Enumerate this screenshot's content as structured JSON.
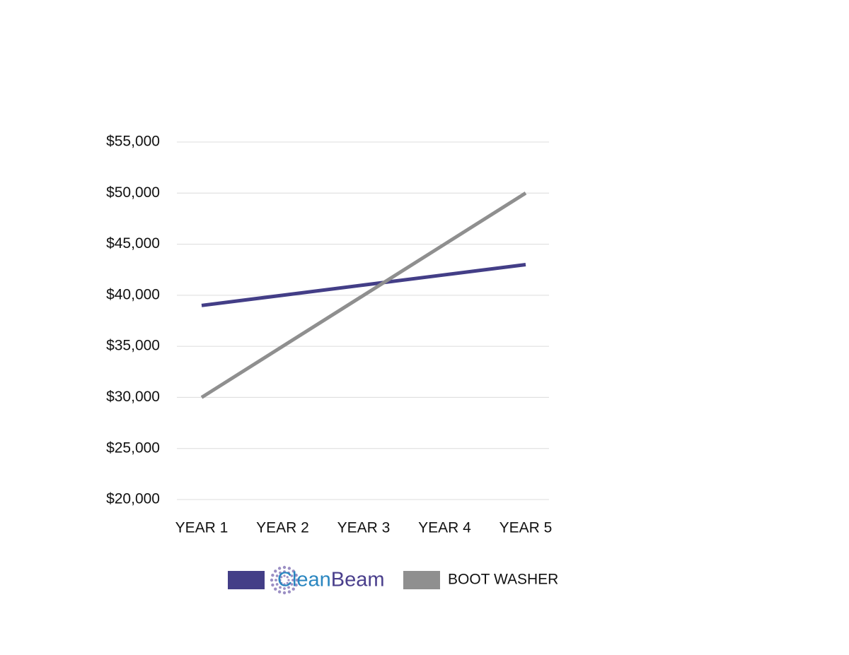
{
  "chart_data": {
    "type": "line",
    "categories": [
      "YEAR 1",
      "YEAR 2",
      "YEAR 3",
      "YEAR 4",
      "YEAR 5"
    ],
    "series": [
      {
        "name": "CleanBeam",
        "color": "#433e87",
        "values": [
          39000,
          40000,
          41000,
          42000,
          43000
        ]
      },
      {
        "name": "BOOT WASHER",
        "color": "#8f8f8f",
        "values": [
          30000,
          35000,
          40000,
          45000,
          50000
        ]
      }
    ],
    "ylim": [
      20000,
      55000
    ],
    "yticks": [
      {
        "value": 20000,
        "label": "$20,000"
      },
      {
        "value": 25000,
        "label": "$25,000"
      },
      {
        "value": 30000,
        "label": "$30,000"
      },
      {
        "value": 35000,
        "label": "$35,000"
      },
      {
        "value": 40000,
        "label": "$40,000"
      },
      {
        "value": 45000,
        "label": "$45,000"
      },
      {
        "value": 50000,
        "label": "$50,000"
      },
      {
        "value": 55000,
        "label": "$55,000"
      }
    ],
    "grid": true
  }
}
